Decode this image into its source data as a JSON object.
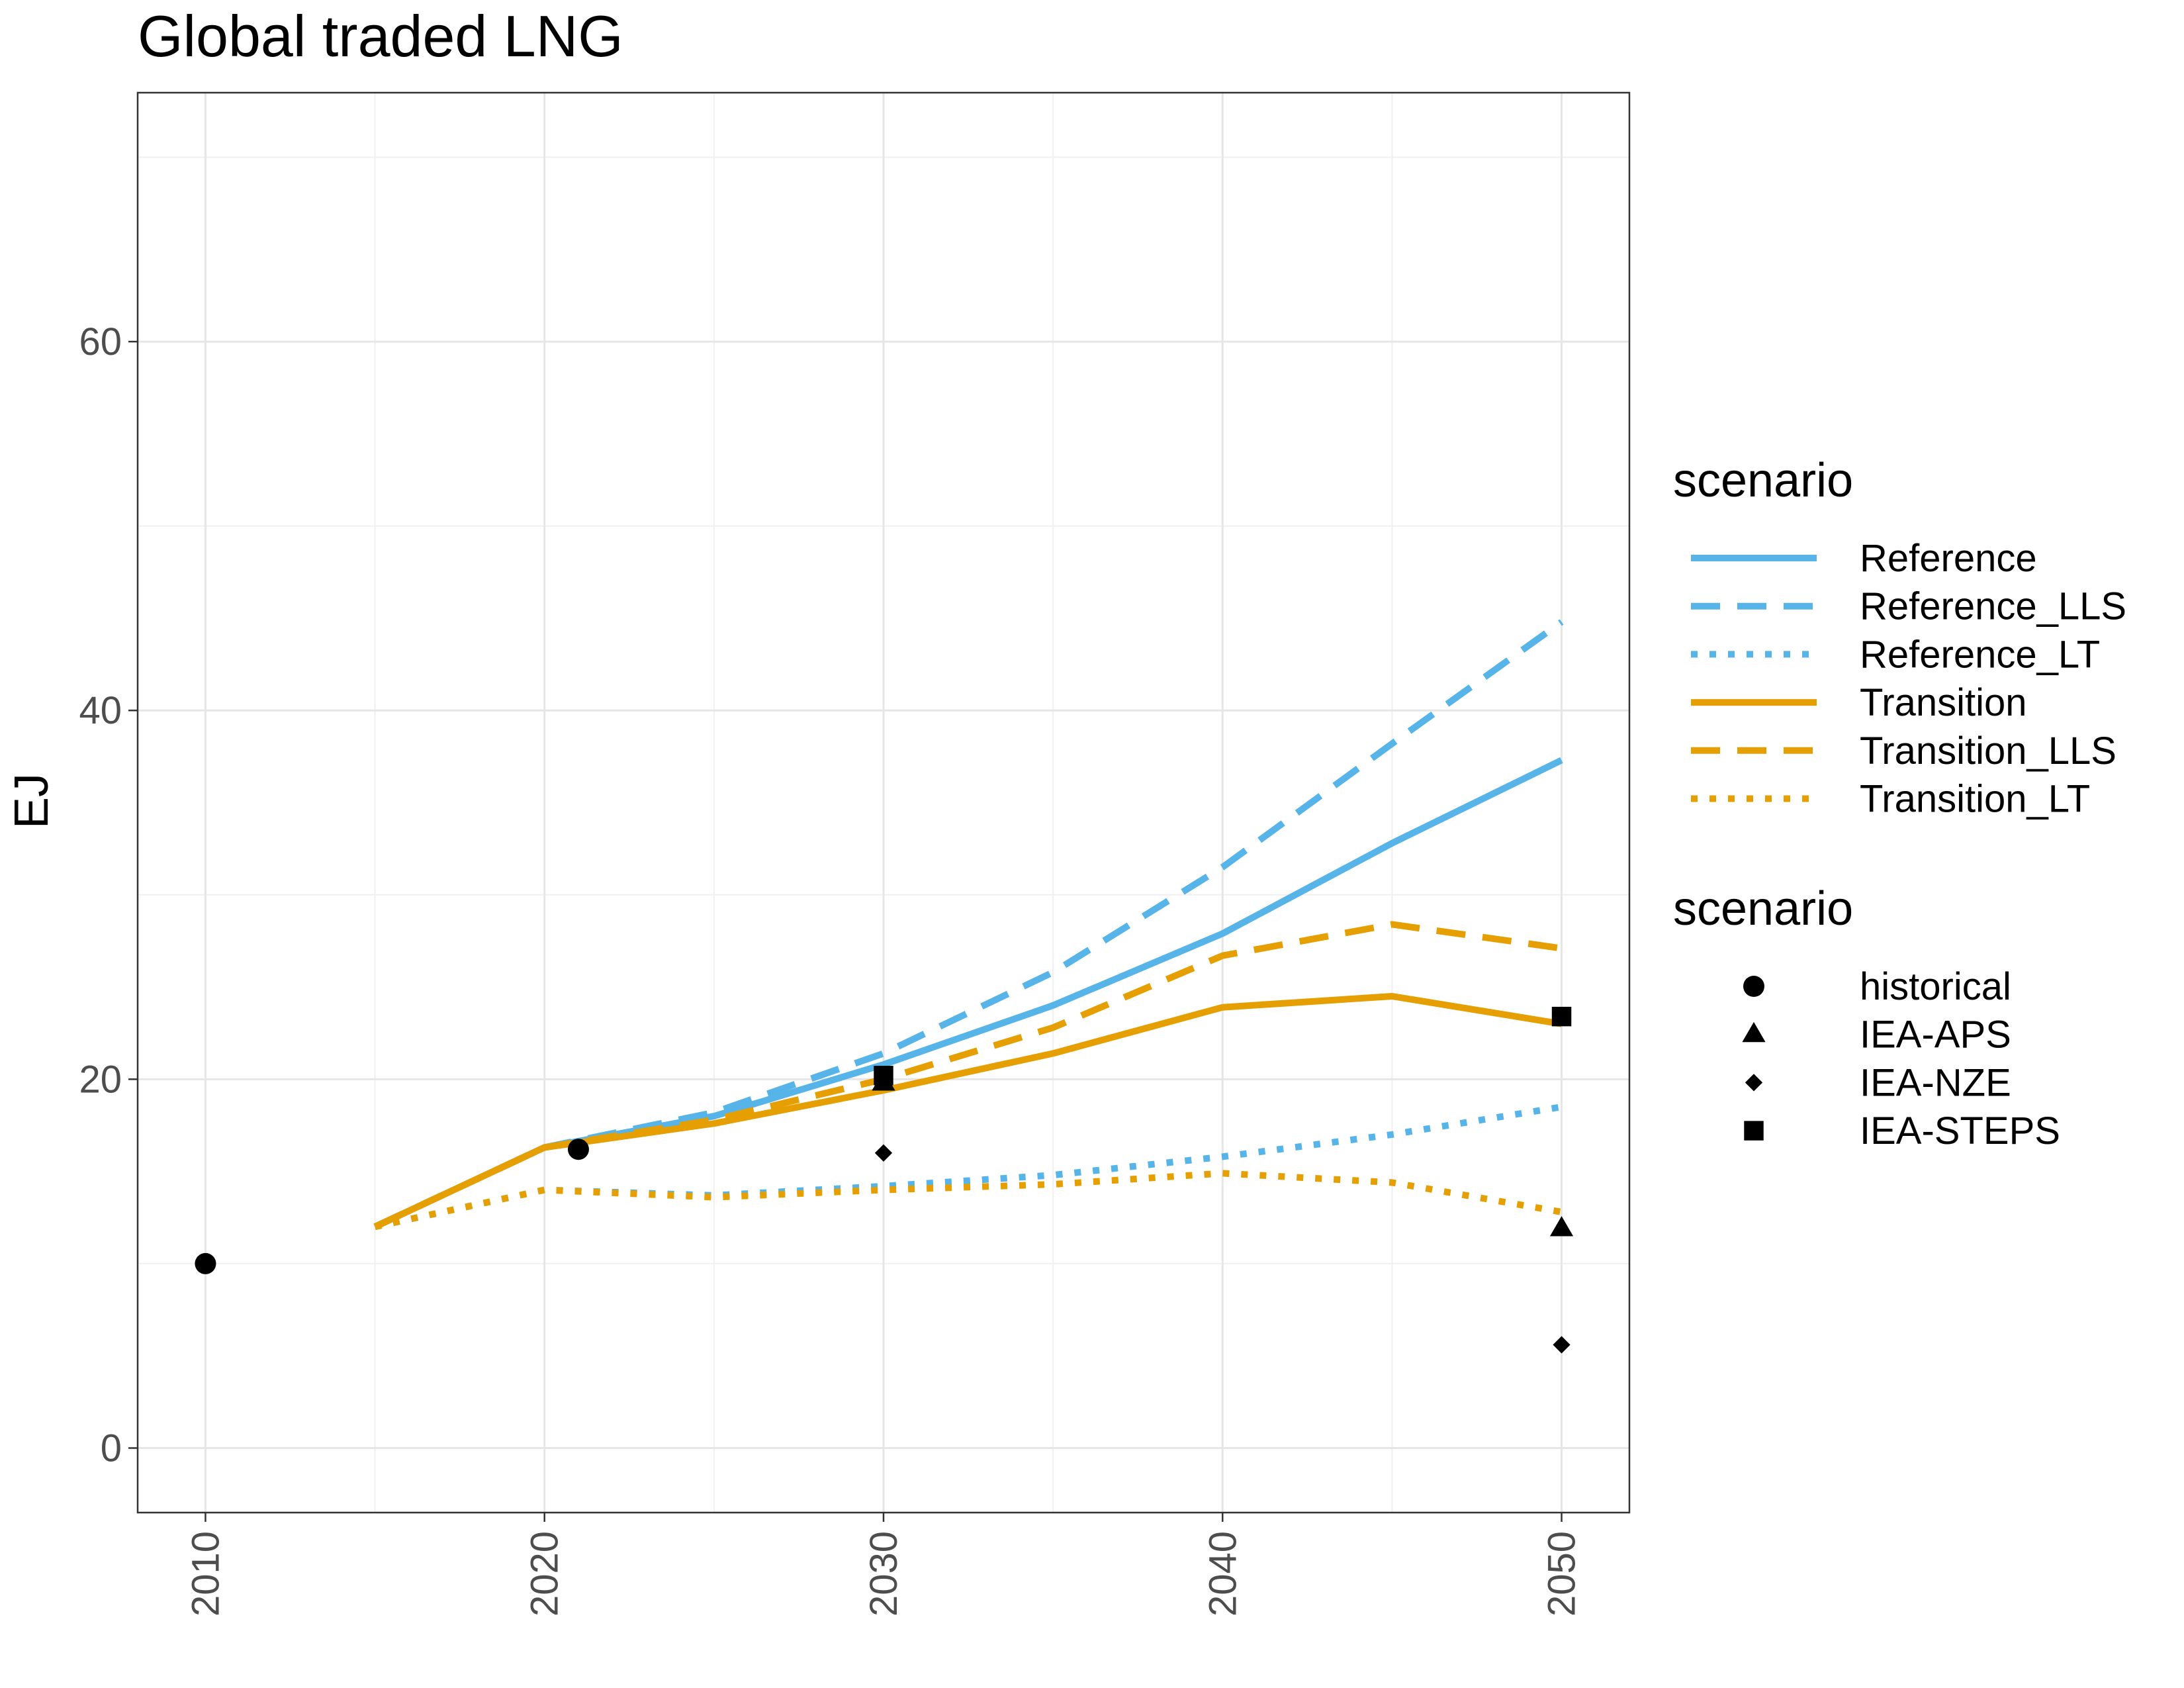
{
  "chart_data": {
    "type": "line",
    "title": "Global traded LNG",
    "xlabel": "",
    "ylabel": "EJ",
    "xlim": [
      2008,
      2052
    ],
    "ylim": [
      -3.5,
      73.5
    ],
    "x_ticks": [
      2010,
      2020,
      2030,
      2040,
      2050
    ],
    "y_ticks": [
      0,
      20,
      40,
      60
    ],
    "grid": true,
    "colors": {
      "reference": "#56B4E9",
      "transition": "#E69F00",
      "points": "#000000"
    },
    "legend_position": "right",
    "legends": [
      {
        "title": "scenario",
        "entries": [
          {
            "label": "Reference",
            "color": "#56B4E9",
            "linetype": "solid"
          },
          {
            "label": "Reference_LLS",
            "color": "#56B4E9",
            "linetype": "dashed"
          },
          {
            "label": "Reference_LT",
            "color": "#56B4E9",
            "linetype": "dotted"
          },
          {
            "label": "Transition",
            "color": "#E69F00",
            "linetype": "solid"
          },
          {
            "label": "Transition_LLS",
            "color": "#E69F00",
            "linetype": "dashed"
          },
          {
            "label": "Transition_LT",
            "color": "#E69F00",
            "linetype": "dotted"
          }
        ]
      },
      {
        "title": "scenario",
        "entries": [
          {
            "label": "historical",
            "shape": "circle"
          },
          {
            "label": "IEA-APS",
            "shape": "triangle"
          },
          {
            "label": "IEA-NZE",
            "shape": "diamond"
          },
          {
            "label": "IEA-STEPS",
            "shape": "square"
          }
        ]
      }
    ],
    "series": [
      {
        "name": "Reference",
        "color": "#56B4E9",
        "linetype": "solid",
        "x": [
          2015,
          2020,
          2025,
          2030,
          2035,
          2040,
          2045,
          2050
        ],
        "y": [
          12.0,
          16.3,
          18.0,
          20.8,
          24.0,
          27.9,
          32.8,
          37.3
        ]
      },
      {
        "name": "Reference_LLS",
        "color": "#56B4E9",
        "linetype": "dashed",
        "x": [
          2015,
          2020,
          2025,
          2030,
          2035,
          2040,
          2045,
          2050
        ],
        "y": [
          12.0,
          16.3,
          18.2,
          21.4,
          25.8,
          31.5,
          38.2,
          44.8
        ]
      },
      {
        "name": "Reference_LT",
        "color": "#56B4E9",
        "linetype": "dotted",
        "x": [
          2015,
          2020,
          2025,
          2030,
          2035,
          2040,
          2045,
          2050
        ],
        "y": [
          12.0,
          14.0,
          13.7,
          14.2,
          14.8,
          15.8,
          17.0,
          18.5
        ]
      },
      {
        "name": "Transition",
        "color": "#E69F00",
        "linetype": "solid",
        "x": [
          2015,
          2020,
          2025,
          2030,
          2035,
          2040,
          2045,
          2050
        ],
        "y": [
          12.0,
          16.3,
          17.6,
          19.4,
          21.4,
          23.9,
          24.5,
          23.0
        ]
      },
      {
        "name": "Transition_LLS",
        "color": "#E69F00",
        "linetype": "dashed",
        "x": [
          2015,
          2020,
          2025,
          2030,
          2035,
          2040,
          2045,
          2050
        ],
        "y": [
          12.0,
          16.3,
          17.8,
          20.0,
          22.8,
          26.7,
          28.4,
          27.1
        ]
      },
      {
        "name": "Transition_LT",
        "color": "#E69F00",
        "linetype": "dotted",
        "x": [
          2015,
          2020,
          2025,
          2030,
          2035,
          2040,
          2045,
          2050
        ],
        "y": [
          12.0,
          14.0,
          13.6,
          14.0,
          14.3,
          14.9,
          14.4,
          12.8
        ]
      }
    ],
    "points": [
      {
        "name": "historical",
        "shape": "circle",
        "x": 2010,
        "y": 10.0
      },
      {
        "name": "historical",
        "shape": "circle",
        "x": 2021,
        "y": 16.2
      },
      {
        "name": "IEA-APS",
        "shape": "triangle",
        "x": 2030,
        "y": 19.8
      },
      {
        "name": "IEA-APS",
        "shape": "triangle",
        "x": 2050,
        "y": 11.9
      },
      {
        "name": "IEA-NZE",
        "shape": "diamond",
        "x": 2030,
        "y": 16.0
      },
      {
        "name": "IEA-NZE",
        "shape": "diamond",
        "x": 2050,
        "y": 5.6
      },
      {
        "name": "IEA-STEPS",
        "shape": "square",
        "x": 2030,
        "y": 20.2
      },
      {
        "name": "IEA-STEPS",
        "shape": "square",
        "x": 2050,
        "y": 23.4
      }
    ]
  }
}
